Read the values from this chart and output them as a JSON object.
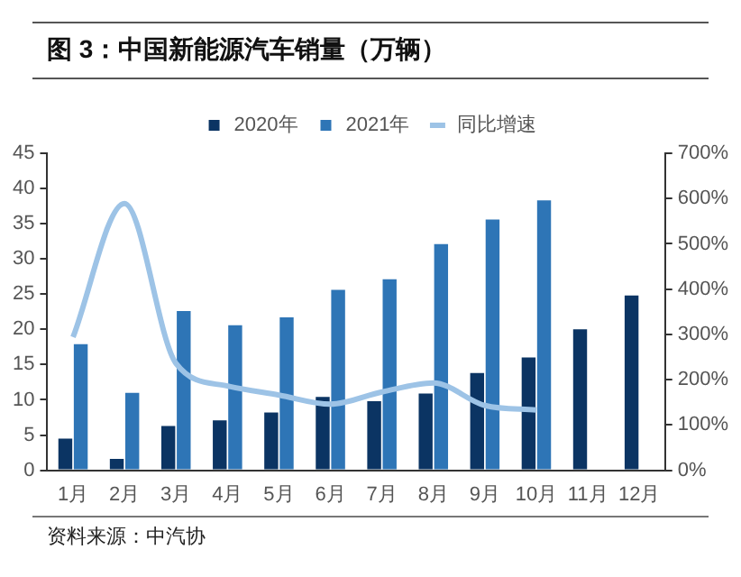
{
  "chart_data": {
    "type": "bar",
    "title": "图 3：中国新能源汽车销量（万辆）",
    "annotations": [
      "资料来源：中汽协"
    ],
    "categories": [
      "1月",
      "2月",
      "3月",
      "4月",
      "5月",
      "6月",
      "7月",
      "8月",
      "9月",
      "10月",
      "11月",
      "12月"
    ],
    "series": [
      {
        "name": "2020年",
        "color": "#0b3463",
        "values": [
          4.5,
          1.6,
          6.3,
          7.1,
          8.2,
          10.4,
          9.8,
          10.9,
          13.8,
          16.0,
          20.0,
          24.8
        ]
      },
      {
        "name": "2021年",
        "color": "#2e75b6",
        "values": [
          17.9,
          11.0,
          22.6,
          20.6,
          21.7,
          25.6,
          27.1,
          32.1,
          35.6,
          38.3,
          null,
          null
        ]
      },
      {
        "name": "同比增速",
        "type": "line",
        "axis": "y2",
        "color": "#9dc3e6",
        "values": [
          294,
          589,
          236,
          186,
          166,
          146,
          173,
          193,
          143,
          133,
          null,
          null
        ]
      }
    ],
    "ylim": [
      0,
      45
    ],
    "yticks": [
      0,
      5,
      10,
      15,
      20,
      25,
      30,
      35,
      40,
      45
    ],
    "y2lim": [
      0,
      700
    ],
    "y2ticks": [
      {
        "value": 0,
        "label": "0%"
      },
      {
        "value": 100,
        "label": "100%"
      },
      {
        "value": 200,
        "label": "200%"
      },
      {
        "value": 300,
        "label": "300%"
      },
      {
        "value": 400,
        "label": "400%"
      },
      {
        "value": 500,
        "label": "500%"
      },
      {
        "value": 600,
        "label": "600%"
      },
      {
        "value": 700,
        "label": "700%"
      }
    ],
    "legend": "top",
    "grid": false,
    "marker": "none"
  }
}
